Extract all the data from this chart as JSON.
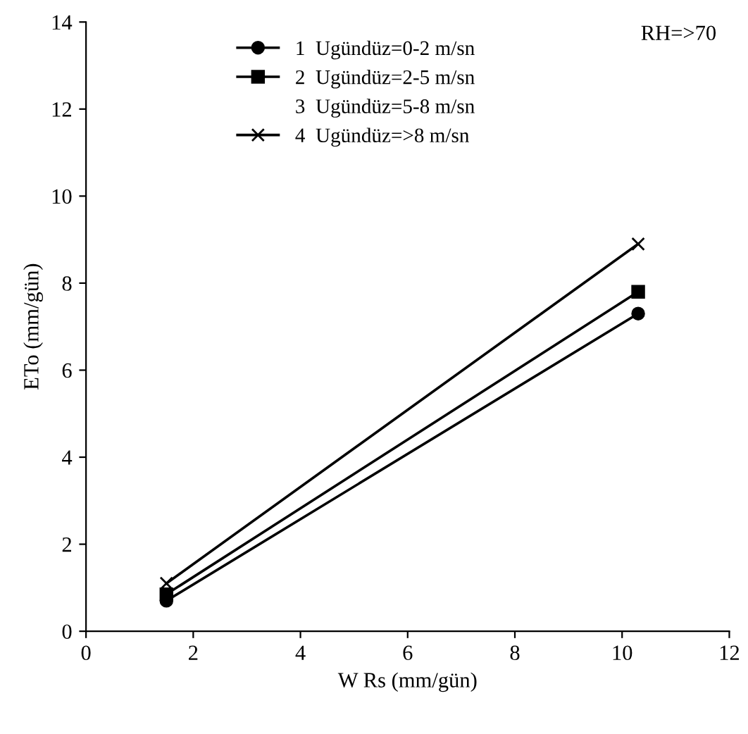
{
  "chart_data": {
    "type": "line",
    "xlabel": "W Rs (mm/gün)",
    "ylabel": "ETo (mm/gün)",
    "x": [
      1.5,
      10.3
    ],
    "series": [
      {
        "name": "1  Ugündüz=0-2 m/sn",
        "color": "#000000",
        "marker": "circle",
        "values": [
          0.7,
          7.3
        ]
      },
      {
        "name": "2  Ugündüz=2-5 m/sn",
        "color": "#000000",
        "marker": "square",
        "values": [
          0.85,
          7.8
        ]
      },
      {
        "name": "3  Ugündüz=5-8 m/sn",
        "color": "#000000",
        "marker": "none",
        "line_style": "none",
        "values": [
          null,
          null
        ]
      },
      {
        "name": "4  Ugündüz=>8 m/sn",
        "color": "#000000",
        "marker": "cross",
        "values": [
          1.1,
          8.9
        ]
      }
    ],
    "xlim": [
      0,
      12
    ],
    "xticks": [
      0,
      2,
      4,
      6,
      8,
      10,
      12
    ],
    "ylim": [
      0,
      14
    ],
    "yticks": [
      0,
      2,
      4,
      6,
      8,
      10,
      12,
      14
    ],
    "grid": false,
    "legend": "top",
    "annotations": [
      "RH=>70"
    ]
  }
}
